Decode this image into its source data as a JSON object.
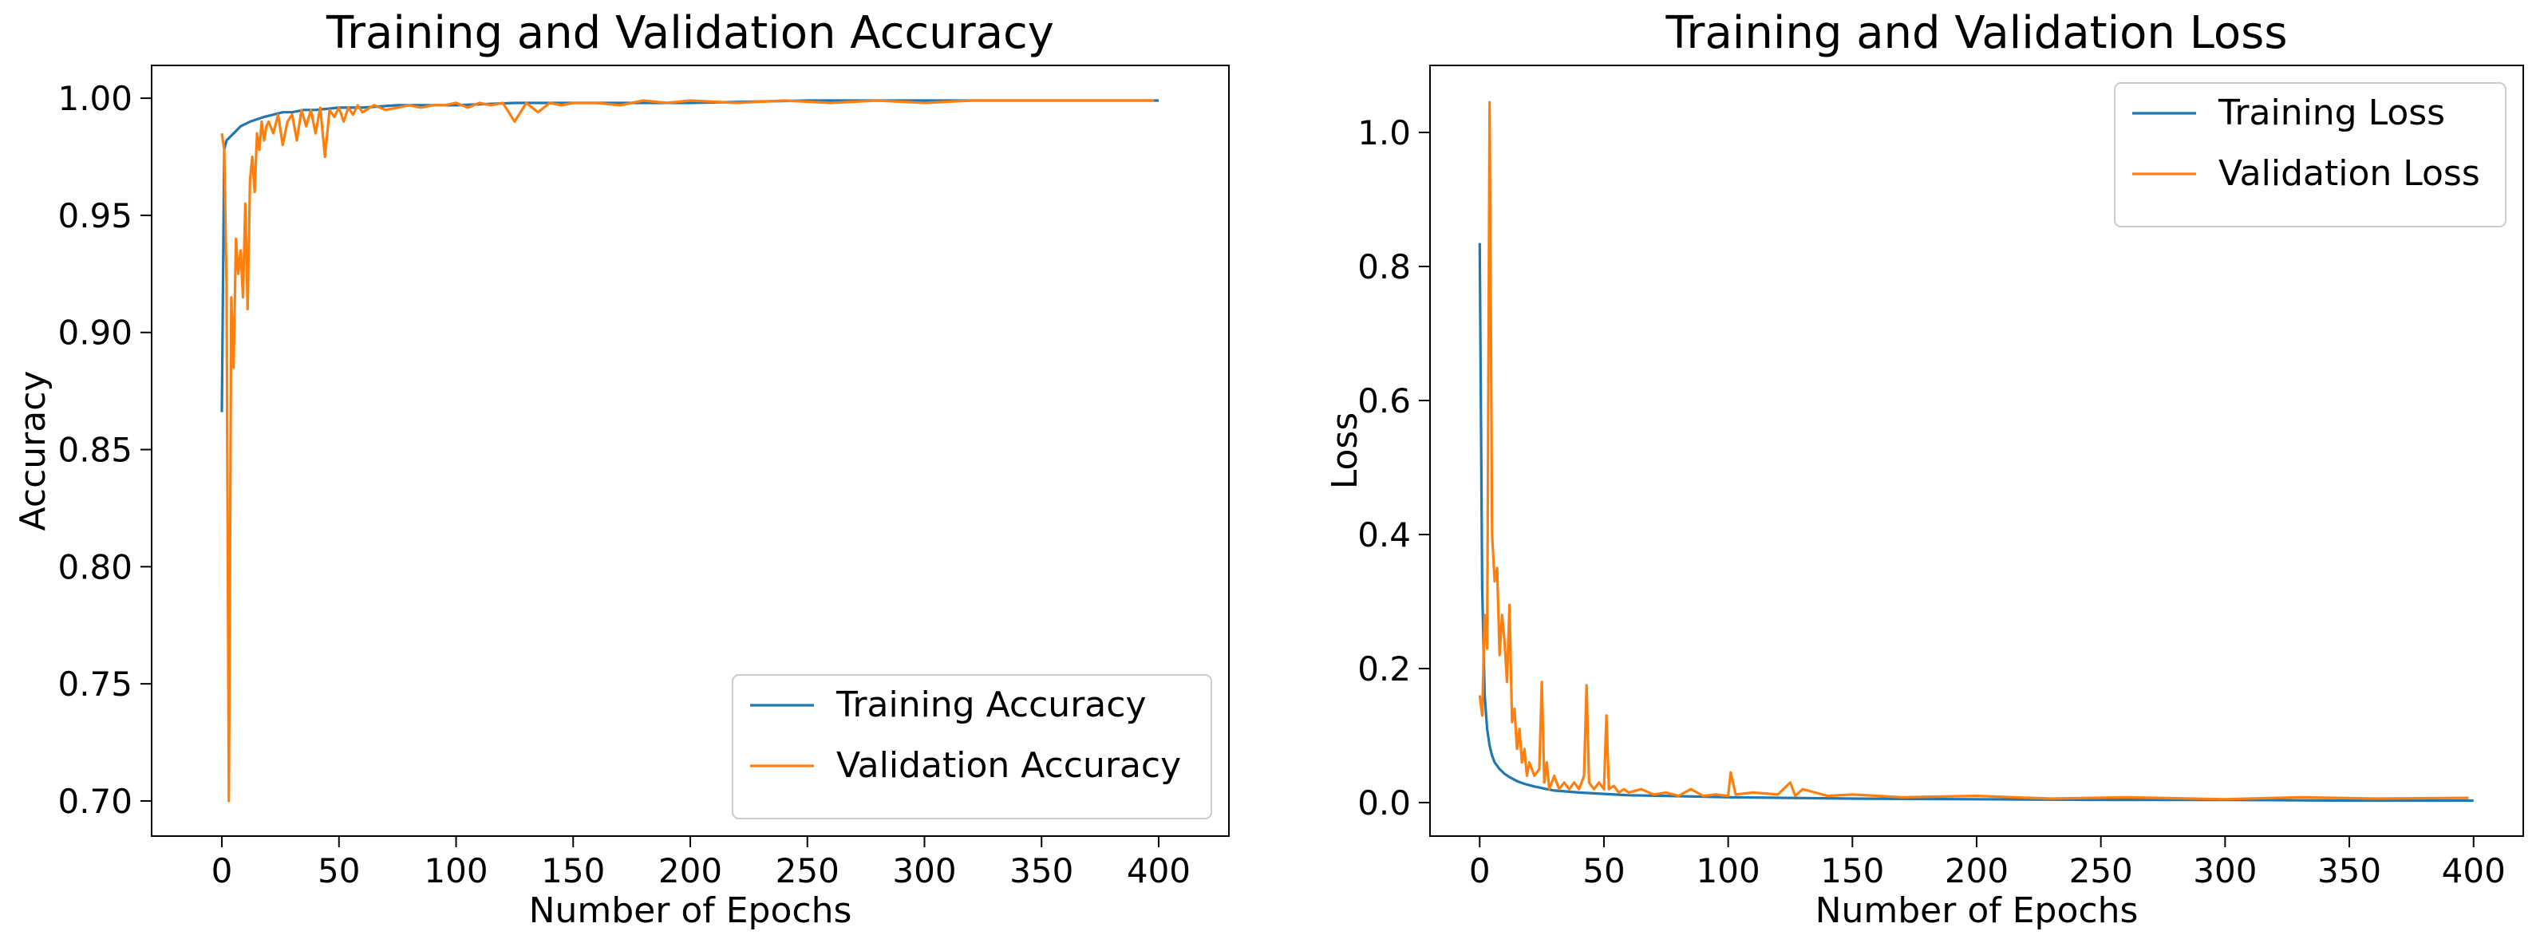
{
  "chart_data": [
    {
      "id": "accuracy",
      "type": "line",
      "title": "Training and Validation Accuracy",
      "xlabel": "Number of Epochs",
      "ylabel": "Accuracy",
      "xlim": [
        -30,
        430
      ],
      "ylim": [
        0.685,
        1.014
      ],
      "xticks": [
        0,
        50,
        100,
        150,
        200,
        250,
        300,
        350,
        400
      ],
      "yticks": [
        0.7,
        0.75,
        0.8,
        0.85,
        0.9,
        0.95,
        1.0
      ],
      "ytick_format": 2,
      "grid": false,
      "legend_position": "lower right",
      "series": [
        {
          "name": "Training Accuracy",
          "color": "#1f77b4",
          "x": [
            0,
            1,
            2,
            4,
            6,
            8,
            10,
            12,
            15,
            18,
            22,
            26,
            30,
            35,
            40,
            50,
            60,
            75,
            100,
            125,
            150,
            200,
            250,
            300,
            350,
            400
          ],
          "y": [
            0.866,
            0.978,
            0.982,
            0.984,
            0.986,
            0.988,
            0.989,
            0.99,
            0.991,
            0.992,
            0.993,
            0.994,
            0.994,
            0.995,
            0.995,
            0.996,
            0.996,
            0.997,
            0.997,
            0.998,
            0.998,
            0.998,
            0.999,
            0.999,
            0.999,
            0.999
          ]
        },
        {
          "name": "Validation Accuracy",
          "color": "#ff7f0e",
          "x": [
            0,
            1,
            2,
            3,
            4,
            5,
            6,
            7,
            8,
            9,
            10,
            11,
            12,
            13,
            14,
            15,
            16,
            17,
            18,
            19,
            20,
            22,
            24,
            26,
            28,
            30,
            32,
            34,
            36,
            38,
            40,
            42,
            44,
            46,
            48,
            50,
            52,
            54,
            56,
            58,
            60,
            65,
            70,
            75,
            80,
            85,
            90,
            95,
            100,
            105,
            110,
            115,
            120,
            125,
            130,
            135,
            140,
            145,
            150,
            160,
            170,
            180,
            190,
            200,
            220,
            240,
            260,
            280,
            300,
            320,
            340,
            360,
            380,
            398
          ],
          "y": [
            0.985,
            0.978,
            0.92,
            0.7,
            0.915,
            0.885,
            0.94,
            0.925,
            0.935,
            0.915,
            0.955,
            0.91,
            0.965,
            0.975,
            0.96,
            0.985,
            0.978,
            0.99,
            0.982,
            0.988,
            0.99,
            0.985,
            0.993,
            0.98,
            0.99,
            0.993,
            0.982,
            0.995,
            0.988,
            0.995,
            0.985,
            0.996,
            0.975,
            0.995,
            0.992,
            0.996,
            0.99,
            0.996,
            0.993,
            0.997,
            0.994,
            0.997,
            0.995,
            0.996,
            0.997,
            0.996,
            0.997,
            0.997,
            0.998,
            0.996,
            0.998,
            0.997,
            0.998,
            0.99,
            0.998,
            0.994,
            0.998,
            0.997,
            0.998,
            0.998,
            0.997,
            0.999,
            0.998,
            0.999,
            0.998,
            0.999,
            0.998,
            0.999,
            0.998,
            0.999,
            0.999,
            0.999,
            0.999,
            0.999
          ]
        }
      ]
    },
    {
      "id": "loss",
      "type": "line",
      "title": "Training and Validation Loss",
      "xlabel": "Number of Epochs",
      "ylabel": "Loss",
      "xlim": [
        -20,
        420
      ],
      "ylim": [
        -0.05,
        1.1
      ],
      "xticks": [
        0,
        50,
        100,
        150,
        200,
        250,
        300,
        350,
        400
      ],
      "yticks": [
        0.0,
        0.2,
        0.4,
        0.6,
        0.8,
        1.0
      ],
      "ytick_format": 1,
      "grid": false,
      "legend_position": "upper right",
      "series": [
        {
          "name": "Training Loss",
          "color": "#1f77b4",
          "x": [
            0,
            1,
            2,
            3,
            4,
            5,
            6,
            8,
            10,
            12,
            15,
            18,
            22,
            26,
            30,
            40,
            50,
            60,
            75,
            100,
            150,
            200,
            250,
            300,
            350,
            400
          ],
          "y": [
            0.835,
            0.32,
            0.16,
            0.11,
            0.085,
            0.07,
            0.06,
            0.05,
            0.043,
            0.038,
            0.032,
            0.028,
            0.024,
            0.021,
            0.018,
            0.015,
            0.013,
            0.011,
            0.01,
            0.008,
            0.006,
            0.005,
            0.004,
            0.004,
            0.003,
            0.003
          ]
        },
        {
          "name": "Validation Loss",
          "color": "#ff7f0e",
          "x": [
            0,
            1,
            2,
            3,
            4,
            5,
            6,
            7,
            8,
            9,
            10,
            11,
            12,
            13,
            14,
            15,
            16,
            17,
            18,
            19,
            20,
            22,
            24,
            25,
            26,
            27,
            28,
            30,
            32,
            34,
            36,
            38,
            40,
            42,
            43,
            44,
            46,
            48,
            50,
            51,
            52,
            54,
            56,
            58,
            60,
            65,
            70,
            75,
            80,
            85,
            90,
            95,
            100,
            101,
            103,
            110,
            120,
            125,
            127,
            130,
            140,
            150,
            170,
            200,
            230,
            260,
            300,
            330,
            360,
            398
          ],
          "y": [
            0.16,
            0.13,
            0.28,
            0.23,
            1.045,
            0.4,
            0.33,
            0.35,
            0.22,
            0.28,
            0.24,
            0.18,
            0.295,
            0.12,
            0.14,
            0.08,
            0.11,
            0.06,
            0.08,
            0.04,
            0.06,
            0.04,
            0.05,
            0.18,
            0.03,
            0.06,
            0.02,
            0.04,
            0.02,
            0.03,
            0.02,
            0.03,
            0.02,
            0.04,
            0.175,
            0.03,
            0.02,
            0.03,
            0.02,
            0.13,
            0.02,
            0.025,
            0.015,
            0.02,
            0.015,
            0.02,
            0.012,
            0.015,
            0.01,
            0.02,
            0.01,
            0.012,
            0.01,
            0.045,
            0.012,
            0.015,
            0.012,
            0.03,
            0.01,
            0.02,
            0.01,
            0.012,
            0.008,
            0.01,
            0.006,
            0.008,
            0.005,
            0.008,
            0.006,
            0.007
          ]
        }
      ]
    }
  ]
}
